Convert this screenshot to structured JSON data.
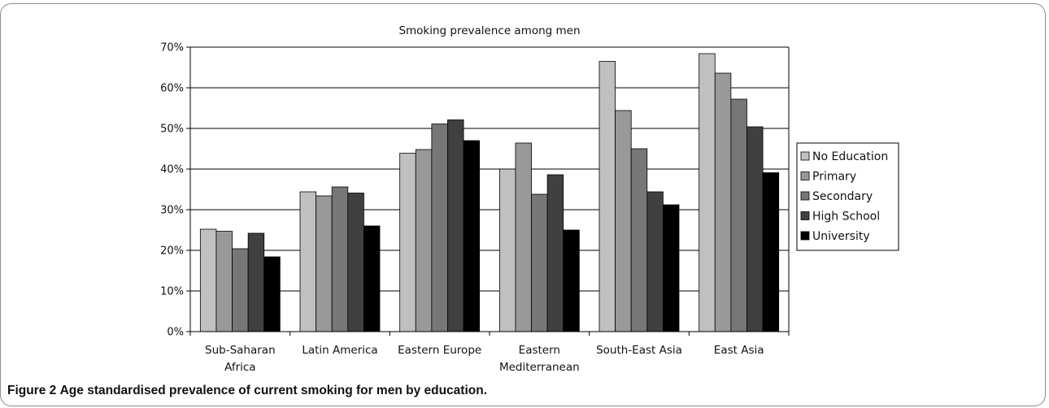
{
  "caption": {
    "figure_label": "Figure 2",
    "text": "Age standardised prevalence of current smoking for men by education."
  },
  "chart_data": {
    "type": "bar",
    "title": "Smoking prevalence among men",
    "xlabel": "",
    "ylabel": "",
    "ylim": [
      0,
      70
    ],
    "yticks": [
      "0%",
      "10%",
      "20%",
      "30%",
      "40%",
      "50%",
      "60%",
      "70%"
    ],
    "grid": true,
    "legend_position": "right",
    "categories": [
      [
        "Sub-Saharan",
        "Africa"
      ],
      [
        "Latin America"
      ],
      [
        "Eastern Europe"
      ],
      [
        "Eastern",
        "Mediterranean"
      ],
      [
        "South-East Asia"
      ],
      [
        "East Asia"
      ]
    ],
    "series": [
      {
        "name": "No Education",
        "color": "#c0c0c0",
        "values": [
          25.2,
          34.4,
          43.9,
          40.0,
          66.5,
          68.4
        ]
      },
      {
        "name": "Primary",
        "color": "#999999",
        "values": [
          24.7,
          33.4,
          44.8,
          46.4,
          54.4,
          63.6
        ]
      },
      {
        "name": "Secondary",
        "color": "#777777",
        "values": [
          20.4,
          35.6,
          51.1,
          33.8,
          45.0,
          57.2
        ]
      },
      {
        "name": "High School",
        "color": "#404040",
        "values": [
          24.2,
          34.1,
          52.1,
          38.6,
          34.4,
          50.4
        ]
      },
      {
        "name": "University",
        "color": "#000000",
        "values": [
          18.4,
          26.0,
          47.0,
          25.0,
          31.2,
          39.1
        ]
      }
    ]
  }
}
